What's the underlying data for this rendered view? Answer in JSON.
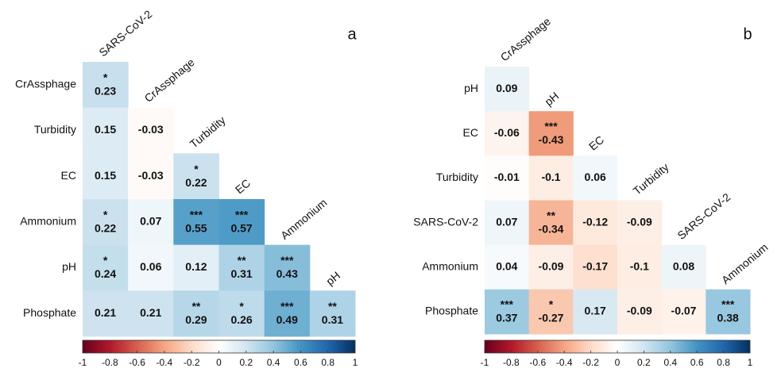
{
  "chart_data": [
    {
      "type": "heatmap",
      "panel": "a",
      "colormap": "RdBu",
      "columns": [
        "SARS-CoV-2",
        "CrAssphage",
        "Turbidity",
        "EC",
        "Ammonium",
        "pH"
      ],
      "rows": [
        "CrAssphage",
        "Turbidity",
        "EC",
        "Ammonium",
        "pH",
        "Phosphate"
      ],
      "values": [
        [
          0.23
        ],
        [
          0.15,
          -0.03
        ],
        [
          0.15,
          -0.03,
          0.22
        ],
        [
          0.22,
          0.07,
          0.55,
          0.57
        ],
        [
          0.24,
          0.06,
          0.12,
          0.31,
          0.43
        ],
        [
          0.21,
          0.21,
          0.29,
          0.26,
          0.49,
          0.31
        ]
      ],
      "stars": [
        [
          "*"
        ],
        [
          null,
          null
        ],
        [
          null,
          null,
          "*"
        ],
        [
          "*",
          null,
          "***",
          "***"
        ],
        [
          "*",
          null,
          null,
          "**",
          "***"
        ],
        [
          null,
          null,
          "**",
          "*",
          "***",
          "**"
        ]
      ],
      "clim": [
        -1,
        1
      ],
      "cticks": [
        -1,
        -0.8,
        -0.6,
        -0.4,
        -0.2,
        0,
        0.2,
        0.4,
        0.6,
        0.8,
        1
      ]
    },
    {
      "type": "heatmap",
      "panel": "b",
      "colormap": "RdBu",
      "columns": [
        "CrAssphage",
        "pH",
        "EC",
        "Turbidity",
        "SARS-CoV-2",
        "Ammonium"
      ],
      "rows": [
        "pH",
        "EC",
        "Turbidity",
        "SARS-CoV-2",
        "Ammonium",
        "Phosphate"
      ],
      "values": [
        [
          0.09
        ],
        [
          -0.06,
          -0.43
        ],
        [
          -0.01,
          -0.1,
          0.06
        ],
        [
          0.07,
          -0.34,
          -0.12,
          -0.09
        ],
        [
          0.04,
          -0.09,
          -0.17,
          -0.1,
          0.08
        ],
        [
          0.37,
          -0.27,
          0.17,
          -0.09,
          -0.07,
          0.38
        ]
      ],
      "stars": [
        [
          null
        ],
        [
          null,
          "***"
        ],
        [
          null,
          null,
          null
        ],
        [
          null,
          "**",
          null,
          null
        ],
        [
          null,
          null,
          null,
          null,
          null
        ],
        [
          "***",
          "*",
          null,
          null,
          null,
          "***"
        ]
      ],
      "clim": [
        -1,
        1
      ],
      "cticks": [
        -1,
        -0.8,
        -0.6,
        -0.4,
        -0.2,
        0,
        0.2,
        0.4,
        0.6,
        0.8,
        1
      ]
    }
  ]
}
